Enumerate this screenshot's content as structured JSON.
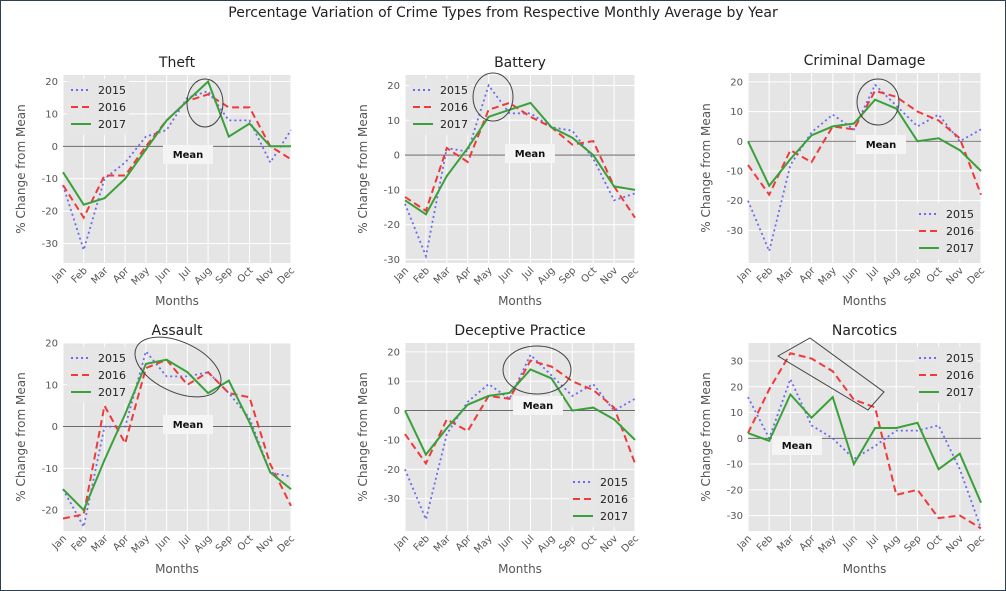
{
  "title": "Percentage Variation of Crime Types from Respective Monthly Average by Year",
  "colors": {
    "2015": "#6a6aee",
    "2016": "#ee3a3a",
    "2017": "#3aa03a"
  },
  "chart_data": [
    {
      "type": "line",
      "title": "Theft",
      "xlabel": "Months",
      "ylabel": "% Change from Mean",
      "categories": [
        "Jan",
        "Feb",
        "Mar",
        "Apr",
        "May",
        "Jun",
        "Jul",
        "Aug",
        "Sep",
        "Oct",
        "Nov",
        "Dec"
      ],
      "yticks": [
        -30,
        -20,
        -10,
        0,
        10,
        20
      ],
      "ylim": [
        -36,
        22
      ],
      "legend": "top-left",
      "grid": true,
      "mean_label": "Mean",
      "series": [
        {
          "name": "2015",
          "values": [
            -12,
            -32,
            -10,
            -5,
            3,
            5,
            15,
            17,
            8,
            8,
            -5,
            5
          ]
        },
        {
          "name": "2016",
          "values": [
            -12,
            -22,
            -9,
            -9,
            0,
            8,
            14,
            16,
            12,
            12,
            0,
            -4
          ]
        },
        {
          "name": "2017",
          "values": [
            -8,
            -18,
            -16,
            -10,
            -1,
            8,
            14,
            20,
            3,
            7,
            0,
            0
          ]
        }
      ]
    },
    {
      "type": "line",
      "title": "Battery",
      "xlabel": "Months",
      "ylabel": "% Change from Mean",
      "categories": [
        "Jan",
        "Feb",
        "Mar",
        "Apr",
        "May",
        "Jun",
        "Jul",
        "Aug",
        "Sep",
        "Oct",
        "Nov",
        "Dec"
      ],
      "yticks": [
        -30,
        -20,
        -10,
        0,
        10,
        20
      ],
      "ylim": [
        -31,
        23
      ],
      "legend": "top-left",
      "grid": true,
      "mean_label": "Mean",
      "series": [
        {
          "name": "2015",
          "values": [
            -14,
            -29,
            2,
            1,
            20,
            12,
            12,
            8,
            7,
            -1,
            -13,
            -11
          ]
        },
        {
          "name": "2016",
          "values": [
            -12,
            -16,
            2,
            -2,
            13,
            15,
            11,
            8,
            3,
            4,
            -9,
            -18
          ]
        },
        {
          "name": "2017",
          "values": [
            -13,
            -17,
            -6,
            2,
            11,
            13,
            15,
            8,
            5,
            0,
            -9,
            -10
          ]
        }
      ]
    },
    {
      "type": "line",
      "title": "Criminal Damage",
      "xlabel": "Months",
      "ylabel": "% Change from Mean",
      "categories": [
        "Jan",
        "Feb",
        "Mar",
        "Apr",
        "May",
        "Jun",
        "Jul",
        "Aug",
        "Sep",
        "Oct",
        "Nov",
        "Dec"
      ],
      "yticks": [
        -30,
        -20,
        -10,
        0,
        10,
        20
      ],
      "ylim": [
        -41,
        23
      ],
      "legend": "bottom-right",
      "grid": true,
      "mean_label": "Mean",
      "series": [
        {
          "name": "2015",
          "values": [
            -20,
            -37,
            -8,
            3,
            9,
            4,
            19,
            12,
            5,
            9,
            0,
            4
          ]
        },
        {
          "name": "2016",
          "values": [
            -8,
            -18,
            -3,
            -7,
            5,
            4,
            17,
            15,
            10,
            7,
            1,
            -18
          ]
        },
        {
          "name": "2017",
          "values": [
            0,
            -15,
            -6,
            2,
            5,
            6,
            14,
            11,
            0,
            1,
            -3,
            -10
          ]
        }
      ]
    },
    {
      "type": "line",
      "title": "Assault",
      "xlabel": "Months",
      "ylabel": "% Change from Mean",
      "categories": [
        "Jan",
        "Feb",
        "Mar",
        "Apr",
        "May",
        "Jun",
        "Jul",
        "Aug",
        "Sep",
        "Oct",
        "Nov",
        "Dec"
      ],
      "yticks": [
        -20,
        -10,
        0,
        10,
        20
      ],
      "ylim": [
        -25,
        20
      ],
      "legend": "top-left",
      "grid": true,
      "mean_label": "Mean",
      "series": [
        {
          "name": "2015",
          "values": [
            -15,
            -24,
            0,
            0,
            18,
            12,
            12,
            13,
            8,
            2,
            -11,
            -12
          ]
        },
        {
          "name": "2016",
          "values": [
            -22,
            -21,
            5,
            -4,
            14,
            16,
            10,
            13,
            8,
            7,
            -9,
            -19
          ]
        },
        {
          "name": "2017",
          "values": [
            -15,
            -20,
            -8,
            3,
            15,
            16,
            13,
            8,
            11,
            1,
            -11,
            -15
          ]
        }
      ]
    },
    {
      "type": "line",
      "title": "Deceptive Practice",
      "xlabel": "Months",
      "ylabel": "% Change from Mean",
      "categories": [
        "Jan",
        "Feb",
        "Mar",
        "Apr",
        "May",
        "Jun",
        "Jul",
        "Aug",
        "Sep",
        "Oct",
        "Nov",
        "Dec"
      ],
      "yticks": [
        -30,
        -20,
        -10,
        0,
        10,
        20
      ],
      "ylim": [
        -41,
        23
      ],
      "legend": "bottom-right",
      "grid": true,
      "mean_label": "Mean",
      "series": [
        {
          "name": "2015",
          "values": [
            -20,
            -37,
            -8,
            3,
            9,
            4,
            19,
            12,
            5,
            9,
            0,
            4
          ]
        },
        {
          "name": "2016",
          "values": [
            -8,
            -18,
            -3,
            -7,
            5,
            4,
            17,
            15,
            10,
            7,
            1,
            -18
          ]
        },
        {
          "name": "2017",
          "values": [
            0,
            -15,
            -6,
            2,
            5,
            6,
            14,
            11,
            0,
            1,
            -3,
            -10
          ]
        }
      ]
    },
    {
      "type": "line",
      "title": "Narcotics",
      "xlabel": "Months",
      "ylabel": "% Change from Mean",
      "categories": [
        "Jan",
        "Feb",
        "Mar",
        "Apr",
        "May",
        "Jun",
        "Jul",
        "Aug",
        "Sep",
        "Oct",
        "Nov",
        "Dec"
      ],
      "yticks": [
        -30,
        -20,
        -10,
        0,
        10,
        20,
        30
      ],
      "ylim": [
        -36,
        37
      ],
      "legend": "top-right",
      "grid": true,
      "mean_label": "Mean",
      "series": [
        {
          "name": "2015",
          "values": [
            16,
            0,
            23,
            5,
            0,
            -8,
            -3,
            3,
            3,
            5,
            -12,
            -35
          ]
        },
        {
          "name": "2016",
          "values": [
            2,
            19,
            33,
            31,
            26,
            15,
            12,
            -22,
            -20,
            -31,
            -30,
            -35
          ]
        },
        {
          "name": "2017",
          "values": [
            2,
            -1,
            17,
            8,
            16,
            -10,
            4,
            4,
            6,
            -12,
            -6,
            -25
          ]
        }
      ]
    }
  ]
}
